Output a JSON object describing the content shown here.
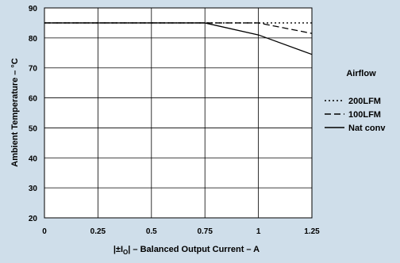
{
  "chart_data": {
    "type": "line",
    "xlabel": "|±I",
    "xlabel_sub": "O",
    "xlabel_rest": "| – Balanced Output Current – A",
    "ylabel": "Ambient Temperature – °C",
    "xlim": [
      0,
      1.25
    ],
    "ylim": [
      20,
      90
    ],
    "x_ticks": [
      "0",
      "0.25",
      "0.5",
      "0.75",
      "1",
      "1.25"
    ],
    "y_ticks": [
      "20",
      "30",
      "40",
      "50",
      "60",
      "70",
      "80",
      "90"
    ],
    "grid": true,
    "legend": {
      "title": "Airflow",
      "placement": "right"
    },
    "series": [
      {
        "name": "200LFM",
        "style": "dotted",
        "x": [
          0,
          0.75,
          1.0,
          1.25
        ],
        "y": [
          85,
          85,
          85,
          85
        ]
      },
      {
        "name": "100LFM",
        "style": "dashed",
        "x": [
          0,
          0.75,
          1.0,
          1.25
        ],
        "y": [
          85,
          85,
          85,
          81.5
        ]
      },
      {
        "name": "Nat conv",
        "style": "solid",
        "x": [
          0,
          0.75,
          1.0,
          1.25
        ],
        "y": [
          85,
          85,
          81,
          74.5
        ]
      }
    ]
  },
  "colors": {
    "background": "#cfdeea",
    "plot_background": "#ffffff",
    "grid": "#000000",
    "lines": "#000000"
  }
}
